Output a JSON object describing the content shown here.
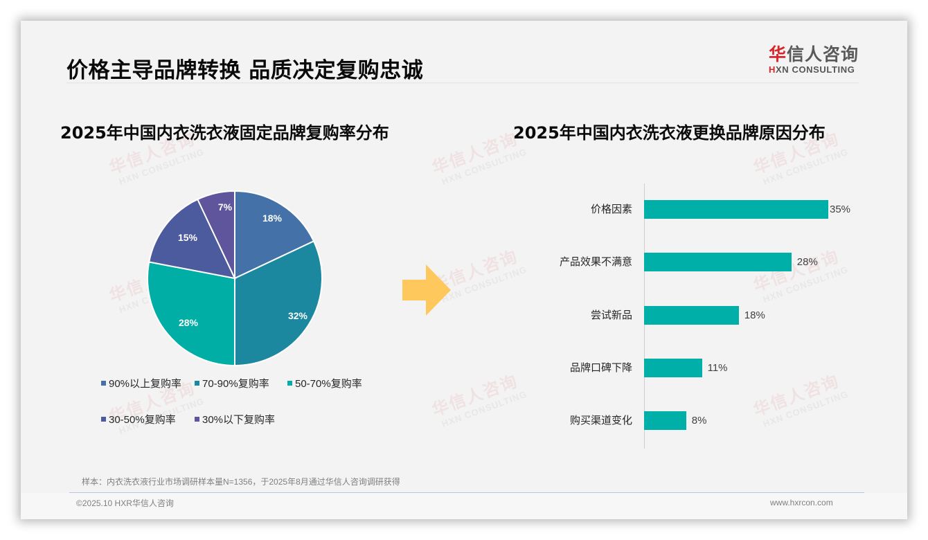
{
  "header": {
    "title": "价格主导品牌转换 品质决定复购忠诚",
    "logo_cn_first": "华",
    "logo_cn_rest": "信人咨询",
    "logo_en_first": "H",
    "logo_en_rest": "XN CONSULTING"
  },
  "watermark": {
    "cn": "华信人咨询",
    "en": "HXN CONSULTING"
  },
  "colors": {
    "pie": [
      "#4472a8",
      "#1b88a0",
      "#00aea6",
      "#4c5b9e",
      "#5e559c"
    ],
    "bar": "#00b0a8",
    "arrow": "#ffc85c",
    "brand_red": "#d9252a"
  },
  "chart_data": [
    {
      "type": "pie",
      "title": "2025年中国内衣洗衣液固定品牌复购率分布",
      "categories": [
        "90%以上复购率",
        "70-90%复购率",
        "50-70%复购率",
        "30-50%复购率",
        "30%以下复购率"
      ],
      "values": [
        18,
        32,
        28,
        15,
        7
      ],
      "labels": [
        "18%",
        "32%",
        "28%",
        "15%",
        "7%"
      ],
      "legend_position": "bottom",
      "start_angle": "12 o'clock, clockwise"
    },
    {
      "type": "bar",
      "orientation": "horizontal",
      "title": "2025年中国内衣洗衣液更换品牌原因分布",
      "categories": [
        "价格因素",
        "产品效果不满意",
        "尝试新品",
        "品牌口碑下降",
        "购买渠道变化"
      ],
      "values": [
        35,
        28,
        18,
        11,
        8
      ],
      "labels": [
        "35%",
        "28%",
        "18%",
        "11%",
        "8%"
      ],
      "xlabel": "",
      "ylabel": "",
      "grid": false,
      "data_labels": true
    }
  ],
  "footer": {
    "note": "样本：内衣洗衣液行业市场调研样本量N=1356，于2025年8月通过华信人咨询调研获得",
    "copyright": "©2025.10 HXR华信人咨询",
    "website": "www.hxrcon.com"
  }
}
